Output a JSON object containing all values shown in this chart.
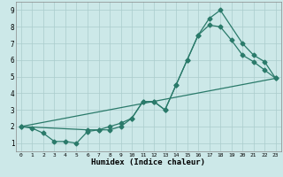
{
  "title": "",
  "xlabel": "Humidex (Indice chaleur)",
  "bg_color": "#cce8e8",
  "grid_color": "#aacccc",
  "line_color": "#2a7a6a",
  "xlim": [
    -0.5,
    23.5
  ],
  "ylim": [
    0.5,
    9.5
  ],
  "yticks": [
    1,
    2,
    3,
    4,
    5,
    6,
    7,
    8,
    9
  ],
  "xticks": [
    0,
    1,
    2,
    3,
    4,
    5,
    6,
    7,
    8,
    9,
    10,
    11,
    12,
    13,
    14,
    15,
    16,
    17,
    18,
    19,
    20,
    21,
    22,
    23
  ],
  "line1_x": [
    0,
    1,
    2,
    3,
    4,
    5,
    6,
    7,
    8,
    9,
    10,
    11,
    12,
    13,
    14,
    15,
    16,
    17,
    18,
    20,
    21,
    22,
    23
  ],
  "line1_y": [
    2.0,
    1.9,
    1.6,
    1.1,
    1.1,
    1.0,
    1.7,
    1.8,
    2.0,
    2.2,
    2.5,
    3.5,
    3.5,
    3.0,
    4.5,
    6.0,
    7.5,
    8.5,
    9.0,
    7.0,
    6.3,
    5.9,
    4.9
  ],
  "line2_x": [
    0,
    6,
    7,
    8,
    9,
    10,
    11,
    12,
    13,
    14,
    15,
    16,
    17,
    18,
    19,
    20,
    21,
    22,
    23
  ],
  "line2_y": [
    2.0,
    1.8,
    1.8,
    1.8,
    2.0,
    2.5,
    3.5,
    3.5,
    3.0,
    4.5,
    6.0,
    7.5,
    8.1,
    8.0,
    7.2,
    6.3,
    5.9,
    5.4,
    4.9
  ],
  "line3_x": [
    0,
    23
  ],
  "line3_y": [
    2.0,
    4.9
  ],
  "marker_size": 2.5,
  "linewidth": 0.9
}
